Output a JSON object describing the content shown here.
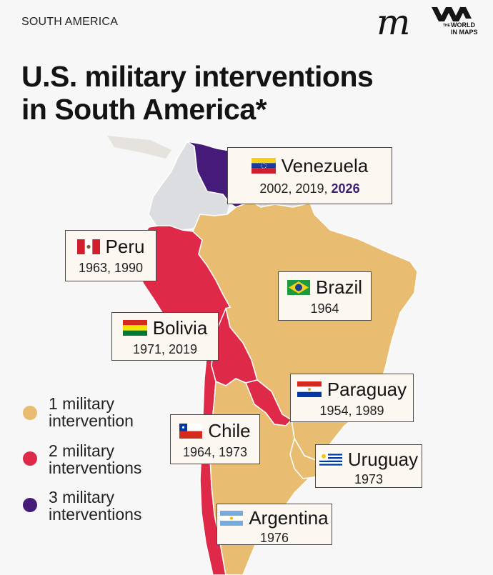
{
  "header": {
    "region_label": "SOUTH AMERICA",
    "logo_m": "m",
    "logo_the": "THE",
    "logo_line1": "WORLD",
    "logo_line2": "IN MAPS"
  },
  "title": {
    "line1": "U.S. military interventions",
    "line2": "in South America*"
  },
  "colors": {
    "one": "#e8bd72",
    "two": "#df2948",
    "three": "#451a78",
    "none": "#dcdde0",
    "neighbor": "#e6e2dd"
  },
  "countries": [
    {
      "name": "Venezuela",
      "years": "2002, 2019,",
      "years_highlight": "2026",
      "interventions": 3,
      "flag": "venezuela-flag"
    },
    {
      "name": "Peru",
      "years": "1963, 1990",
      "interventions": 2,
      "flag": "peru-flag"
    },
    {
      "name": "Brazil",
      "years": "1964",
      "interventions": 1,
      "flag": "brazil-flag"
    },
    {
      "name": "Bolivia",
      "years": "1971, 2019",
      "interventions": 2,
      "flag": "bolivia-flag"
    },
    {
      "name": "Paraguay",
      "years": "1954, 1989",
      "interventions": 2,
      "flag": "paraguay-flag"
    },
    {
      "name": "Chile",
      "years": "1964, 1973",
      "interventions": 2,
      "flag": "chile-flag"
    },
    {
      "name": "Uruguay",
      "years": "1973",
      "interventions": 1,
      "flag": "uruguay-flag"
    },
    {
      "name": "Argentina",
      "years": "1976",
      "interventions": 1,
      "flag": "argentina-flag"
    }
  ],
  "legend": [
    {
      "line1": "1 military",
      "line2": "intervention"
    },
    {
      "line1": "2 military",
      "line2": "interventions"
    },
    {
      "line1": "3 military",
      "line2": "interventions"
    }
  ]
}
